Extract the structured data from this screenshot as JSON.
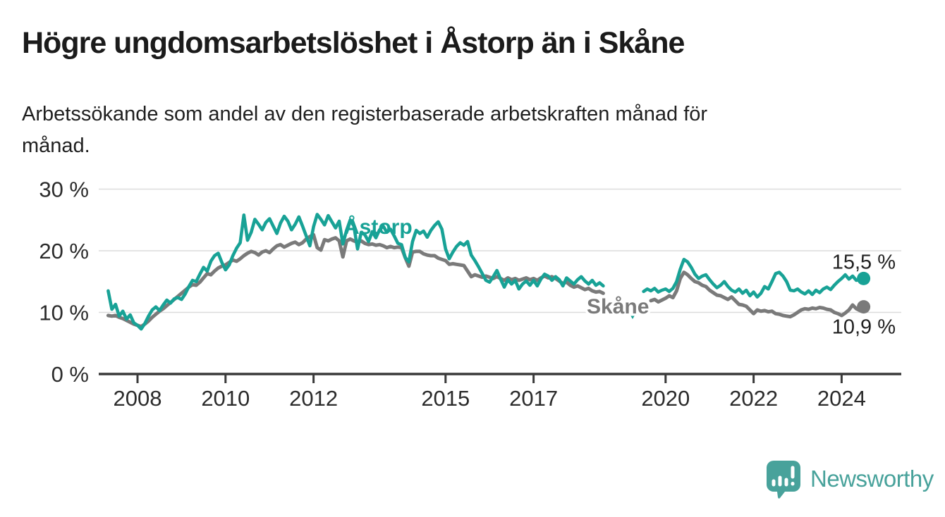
{
  "title": "Högre ungdomsarbetslöshet i Åstorp än i Skåne",
  "subtitle": "Arbetssökande som andel av den registerbaserade arbetskraften månad för månad.",
  "footer": {
    "brand": "Newsworthy"
  },
  "colors": {
    "astorp_teal": "#18a296",
    "skane_gray": "#7a7a7a",
    "logo_teal": "#48a29b",
    "axis": "#3a3a3a",
    "gridline": "#dcdcdc",
    "text": "#222222"
  },
  "chart_data": {
    "type": "line",
    "title": "Högre ungdomsarbetslöshet i Åstorp än i Skåne",
    "subtitle": "Arbetssökande som andel av den registerbaserade arbetskraften månad för månad.",
    "unit": "%",
    "frequency": "monthly",
    "start": "2007-05",
    "end": "2024-07",
    "ylim": [
      0,
      32
    ],
    "grid": "horizontal",
    "y_ticks": [
      {
        "value": 0,
        "label": "0 %"
      },
      {
        "value": 10,
        "label": "10 %"
      },
      {
        "value": 20,
        "label": "20 %"
      },
      {
        "value": 30,
        "label": "30 %"
      }
    ],
    "x_ticks": [
      2008,
      2010,
      2012,
      2015,
      2017,
      2020,
      2022,
      2024
    ],
    "isolated_point_marker": "triangle-down",
    "series": [
      {
        "name": "Skåne",
        "label": "Skåne",
        "color": "#7a7a7a",
        "end_value": 10.9,
        "end_label": "10,9 %",
        "values": [
          9.5,
          9.4,
          9.5,
          9.2,
          9.0,
          8.7,
          8.4,
          8.1,
          7.9,
          7.7,
          8.1,
          8.6,
          9.2,
          9.7,
          10.2,
          10.6,
          11.1,
          11.6,
          12.1,
          12.6,
          13.1,
          13.6,
          14.1,
          14.5,
          14.4,
          14.9,
          15.6,
          16.3,
          16.1,
          16.7,
          17.2,
          17.5,
          17.7,
          18.1,
          18.5,
          18.3,
          18.7,
          19.2,
          19.6,
          19.9,
          19.7,
          19.3,
          19.8,
          20.0,
          19.7,
          20.3,
          20.8,
          21.0,
          20.6,
          20.9,
          21.2,
          21.4,
          21.0,
          21.3,
          21.9,
          22.3,
          22.6,
          20.5,
          20.1,
          21.8,
          21.6,
          21.9,
          22.1,
          21.6,
          19.0,
          21.6,
          21.9,
          21.6,
          21.4,
          21.6,
          21.2,
          21.0,
          21.1,
          20.9,
          21.0,
          20.8,
          20.5,
          20.7,
          20.5,
          20.6,
          20.5,
          18.9,
          17.5,
          19.8,
          19.9,
          19.9,
          19.5,
          19.3,
          19.2,
          19.2,
          18.8,
          18.6,
          18.4,
          17.8,
          17.9,
          17.8,
          17.7,
          17.6,
          16.7,
          15.8,
          16.1,
          15.9,
          15.7,
          15.9,
          15.7,
          15.5,
          15.8,
          15.5,
          15.2,
          15.6,
          15.3,
          15.5,
          15.2,
          15.4,
          15.6,
          15.3,
          15.5,
          15.2,
          15.6,
          15.9,
          15.6,
          15.8,
          15.5,
          15.1,
          14.7,
          14.9,
          14.4,
          14.1,
          14.3,
          14.0,
          13.7,
          13.9,
          13.5,
          13.3,
          13.4,
          13.1,
          null,
          null,
          null,
          null,
          null,
          null,
          null,
          null,
          null,
          null,
          null,
          null,
          11.9,
          12.1,
          11.7,
          12.0,
          12.3,
          12.7,
          12.4,
          13.5,
          15.5,
          16.5,
          16.1,
          15.5,
          15.0,
          14.8,
          14.4,
          14.2,
          13.6,
          13.2,
          12.8,
          12.7,
          12.4,
          12.1,
          12.5,
          11.9,
          11.3,
          11.2,
          11.0,
          10.4,
          9.8,
          10.4,
          10.2,
          10.3,
          10.1,
          10.2,
          9.8,
          9.7,
          9.5,
          9.4,
          9.3,
          9.6,
          10.0,
          10.4,
          10.6,
          10.5,
          10.7,
          10.6,
          10.8,
          10.7,
          10.5,
          10.4,
          10.0,
          9.8,
          9.5,
          9.9,
          10.4,
          11.2,
          10.6,
          10.3,
          10.9
        ]
      },
      {
        "name": "Åstorp",
        "label": "Åstorp",
        "color": "#18a296",
        "end_value": 15.5,
        "end_label": "15,5 %",
        "values": [
          13.5,
          10.5,
          11.3,
          9.4,
          10.2,
          8.9,
          9.6,
          8.3,
          7.9,
          7.3,
          8.2,
          9.4,
          10.4,
          10.9,
          10.3,
          11.2,
          12.0,
          11.5,
          12.2,
          12.4,
          12.1,
          13.0,
          14.2,
          15.2,
          15.0,
          16.2,
          17.3,
          16.7,
          18.3,
          19.2,
          19.6,
          18.1,
          16.9,
          17.7,
          19.2,
          20.4,
          21.3,
          25.8,
          21.7,
          23.0,
          25.1,
          24.3,
          23.4,
          24.6,
          25.2,
          24.0,
          22.8,
          24.5,
          25.6,
          24.8,
          23.4,
          24.3,
          25.5,
          24.0,
          22.4,
          20.8,
          23.9,
          25.9,
          25.1,
          24.2,
          25.7,
          24.7,
          23.7,
          24.8,
          21.1,
          23.3,
          25.0,
          24.0,
          20.3,
          23.0,
          22.6,
          21.5,
          23.1,
          22.1,
          23.4,
          24.0,
          23.0,
          23.5,
          22.4,
          21.2,
          21.0,
          18.9,
          18.2,
          21.5,
          23.3,
          22.8,
          23.2,
          22.2,
          23.3,
          24.1,
          24.7,
          23.5,
          20.3,
          18.7,
          19.8,
          20.7,
          21.3,
          20.9,
          21.5,
          19.3,
          18.4,
          17.4,
          16.3,
          15.2,
          14.9,
          15.8,
          16.8,
          15.4,
          14.1,
          15.3,
          14.6,
          15.2,
          13.8,
          14.6,
          15.1,
          14.4,
          15.2,
          14.3,
          15.4,
          16.2,
          15.9,
          15.2,
          15.8,
          15.3,
          14.3,
          15.6,
          15.1,
          14.6,
          15.3,
          15.8,
          15.1,
          14.6,
          15.2,
          14.4,
          14.8,
          14.3,
          null,
          null,
          null,
          null,
          null,
          null,
          null,
          9.6,
          null,
          null,
          13.4,
          13.8,
          13.5,
          13.9,
          13.3,
          13.6,
          13.8,
          13.4,
          13.9,
          15.0,
          17.0,
          18.6,
          18.2,
          17.3,
          16.2,
          15.5,
          15.9,
          16.1,
          15.3,
          14.6,
          14.0,
          14.4,
          15.0,
          14.2,
          13.6,
          13.3,
          13.8,
          13.1,
          13.6,
          12.7,
          13.3,
          12.5,
          13.1,
          14.2,
          13.8,
          15.0,
          16.3,
          16.5,
          15.9,
          15.0,
          13.6,
          13.5,
          13.8,
          13.3,
          13.0,
          13.5,
          12.9,
          13.6,
          13.2,
          13.8,
          14.1,
          13.7,
          14.4,
          15.0,
          15.5,
          16.1,
          15.4,
          15.9,
          15.2,
          15.3,
          15.5
        ]
      }
    ]
  }
}
